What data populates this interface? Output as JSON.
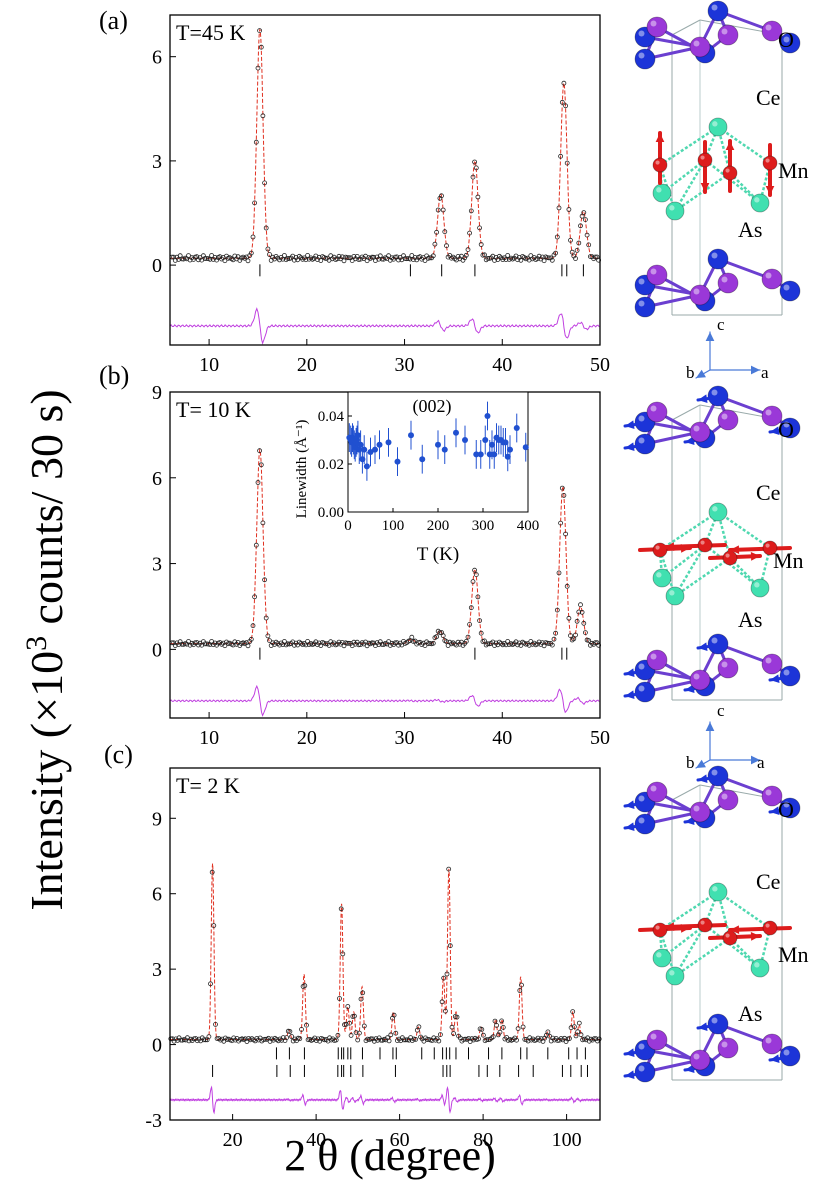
{
  "figure": {
    "ylabel_main": "Intensity (×10³ counts/ 30 s)",
    "ylabel_pre": "Intensity (×10",
    "ylabel_sup": "3",
    "ylabel_post": " counts/ 30 s)",
    "xlabel_main": "2 θ (degree)"
  },
  "colors": {
    "obs": "#222222",
    "calc": "#e03020",
    "diff": "#c040e0",
    "bragg": "#000000",
    "inset_points": "#2050d0",
    "o_atom": "#1c34d8",
    "ce_atom": "#9a38d8",
    "mn_atom": "#dd1c1c",
    "as_atom": "#40e0b0",
    "axis_arrow": "#4a7ad8"
  },
  "chart_data": [
    {
      "panel": "(a)",
      "type": "scatter",
      "temperature_label": "T=45 K",
      "xlim": [
        6,
        50
      ],
      "ylim": [
        -2.3,
        7.2
      ],
      "xticks": [
        10,
        20,
        30,
        40,
        50
      ],
      "yticks": [
        0,
        3,
        6
      ],
      "baseline": 0.2,
      "diff_offset": -1.75,
      "peaks": [
        {
          "pos": 15.2,
          "height": 6.6
        },
        {
          "pos": 33.7,
          "height": 1.85
        },
        {
          "pos": 37.2,
          "height": 2.8
        },
        {
          "pos": 46.3,
          "height": 5.05
        },
        {
          "pos": 48.3,
          "height": 1.35
        }
      ],
      "bragg_rows": [
        [
          15.2,
          30.6,
          33.8,
          37.2,
          46.1,
          46.6,
          48.3
        ]
      ],
      "bragg_y": [
        -0.15
      ]
    },
    {
      "panel": "(b)",
      "type": "scatter",
      "temperature_label": "T= 10 K",
      "xlim": [
        6,
        50
      ],
      "ylim": [
        -2.4,
        9
      ],
      "xticks": [
        10,
        20,
        30,
        40,
        50
      ],
      "yticks": [
        0,
        3,
        6,
        9
      ],
      "baseline": 0.2,
      "diff_offset": -1.8,
      "peaks": [
        {
          "pos": 15.2,
          "height": 6.8
        },
        {
          "pos": 30.7,
          "height": 0.15
        },
        {
          "pos": 33.6,
          "height": 0.45
        },
        {
          "pos": 37.2,
          "height": 2.6
        },
        {
          "pos": 46.2,
          "height": 5.5
        },
        {
          "pos": 48.0,
          "height": 1.3
        }
      ],
      "bragg_rows": [
        [
          15.2,
          37.2,
          46.1,
          46.6
        ]
      ],
      "bragg_y": [
        -0.15
      ],
      "inset": {
        "title": "(002)",
        "xlabel": "T (K)",
        "ylabel": "Linewidth (Å⁻¹)",
        "xlim": [
          0,
          400
        ],
        "ylim": [
          0,
          0.05
        ],
        "xticks": [
          0,
          100,
          200,
          300,
          400
        ],
        "yticks": [
          0.0,
          0.02,
          0.04
        ],
        "yticklabels": [
          "0.00",
          "0.02",
          "0.04"
        ],
        "points": [
          [
            3,
            0.031
          ],
          [
            6,
            0.03
          ],
          [
            8,
            0.029
          ],
          [
            10,
            0.031
          ],
          [
            12,
            0.03
          ],
          [
            14,
            0.028
          ],
          [
            16,
            0.027
          ],
          [
            18,
            0.029
          ],
          [
            20,
            0.03
          ],
          [
            22,
            0.032
          ],
          [
            25,
            0.026
          ],
          [
            28,
            0.028
          ],
          [
            32,
            0.022
          ],
          [
            36,
            0.026
          ],
          [
            42,
            0.019
          ],
          [
            50,
            0.025
          ],
          [
            60,
            0.026
          ],
          [
            70,
            0.028
          ],
          [
            90,
            0.029
          ],
          [
            110,
            0.021
          ],
          [
            140,
            0.032
          ],
          [
            165,
            0.022
          ],
          [
            200,
            0.028
          ],
          [
            215,
            0.026
          ],
          [
            240,
            0.033
          ],
          [
            260,
            0.03
          ],
          [
            285,
            0.024
          ],
          [
            295,
            0.024
          ],
          [
            305,
            0.03
          ],
          [
            310,
            0.04
          ],
          [
            315,
            0.024
          ],
          [
            320,
            0.028
          ],
          [
            325,
            0.024
          ],
          [
            330,
            0.031
          ],
          [
            335,
            0.03
          ],
          [
            340,
            0.03
          ],
          [
            345,
            0.029
          ],
          [
            350,
            0.029
          ],
          [
            355,
            0.023
          ],
          [
            360,
            0.026
          ],
          [
            375,
            0.035
          ],
          [
            395,
            0.027
          ]
        ],
        "error": 0.006
      }
    },
    {
      "panel": "(c)",
      "type": "scatter",
      "temperature_label": "T= 2 K",
      "xlim": [
        5,
        108
      ],
      "ylim": [
        -3,
        11
      ],
      "xticks": [
        20,
        40,
        60,
        80,
        100
      ],
      "yticks": [
        -3,
        0,
        3,
        6,
        9
      ],
      "baseline": 0.2,
      "diff_offset": -2.2,
      "peaks": [
        {
          "pos": 15.2,
          "height": 7.0
        },
        {
          "pos": 33.5,
          "height": 0.4
        },
        {
          "pos": 37.1,
          "height": 2.6
        },
        {
          "pos": 46.1,
          "height": 5.4
        },
        {
          "pos": 47.6,
          "height": 1.3
        },
        {
          "pos": 49.0,
          "height": 1.1
        },
        {
          "pos": 51.0,
          "height": 2.1
        },
        {
          "pos": 58.5,
          "height": 1.1
        },
        {
          "pos": 64.5,
          "height": 0.5
        },
        {
          "pos": 70.5,
          "height": 2.5
        },
        {
          "pos": 71.8,
          "height": 6.8
        },
        {
          "pos": 73.5,
          "height": 1.1
        },
        {
          "pos": 79.5,
          "height": 0.5
        },
        {
          "pos": 83.0,
          "height": 0.8
        },
        {
          "pos": 84.5,
          "height": 0.8
        },
        {
          "pos": 89.0,
          "height": 2.5
        },
        {
          "pos": 95.5,
          "height": 0.3
        },
        {
          "pos": 101.5,
          "height": 1.1
        },
        {
          "pos": 103.0,
          "height": 0.6
        }
      ],
      "bragg_rows": [
        [
          30.5,
          33.6,
          37.2,
          45.3,
          46.1,
          46.6,
          47.6,
          48.3,
          51.1,
          55.3,
          58.4,
          59.2,
          65.3,
          68.3,
          70.3,
          71.2,
          72.0,
          73.5,
          76.5,
          81.3,
          84.5,
          89.0,
          90.5,
          95.5,
          100.5,
          102.5,
          104.5
        ],
        [
          15.2,
          30.6,
          33.8,
          37.2,
          45.2,
          46.1,
          46.6,
          48.3,
          51.2,
          59.0,
          70.4,
          71.3,
          72.1,
          79.0,
          81.0,
          84.0,
          88.5,
          92.0,
          99.0,
          101.0,
          103.5,
          105.0
        ]
      ],
      "bragg_y": [
        -0.35,
        -1.05
      ]
    }
  ],
  "structures": [
    {
      "id": "45K",
      "labels": {
        "o": "O",
        "ce": "Ce",
        "mn": "Mn",
        "as": "As"
      },
      "mn_moment": "c-axis (up/down)",
      "o_moment": "none",
      "axes": {
        "c": "c",
        "b": "b",
        "a": "a"
      }
    },
    {
      "id": "10K",
      "labels": {
        "o": "O",
        "ce": "Ce",
        "mn": "Mn",
        "as": "As"
      },
      "mn_moment": "in-plane (left/right)",
      "o_moment": "small in-plane",
      "axes": {
        "c": "c",
        "b": "b",
        "a": "a"
      }
    },
    {
      "id": "2K",
      "labels": {
        "o": "O",
        "ce": "Ce",
        "mn": "Mn",
        "as": "As"
      },
      "mn_moment": "in-plane (left/right)",
      "o_moment": "small in-plane",
      "axes": null
    }
  ]
}
